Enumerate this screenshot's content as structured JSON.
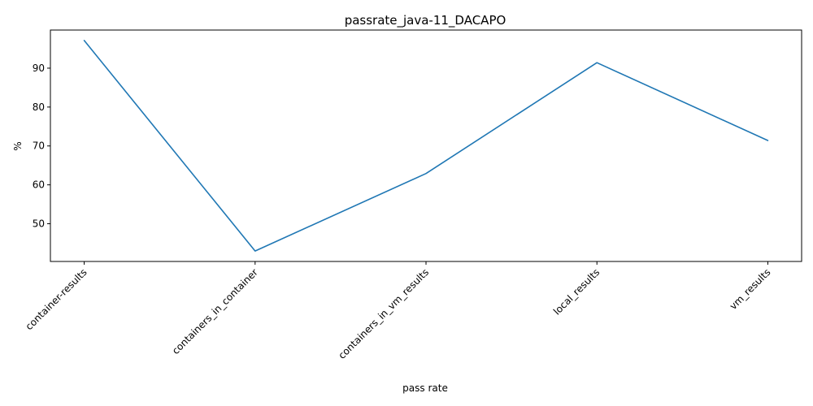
{
  "chart_data": {
    "type": "line",
    "title": "passrate_java-11_DACAPO",
    "xlabel": "pass rate",
    "ylabel": "%",
    "categories": [
      "container-results",
      "containers_in_container",
      "containers_in_vm_results",
      "local_results",
      "vm_results"
    ],
    "series": [
      {
        "values": [
          97.1,
          43.0,
          62.9,
          91.4,
          71.4
        ]
      }
    ],
    "ylim": [
      40.3,
      99.8
    ],
    "yticks": [
      50,
      60,
      70,
      80,
      90
    ],
    "grid": false,
    "line_color": "#1f77b4"
  }
}
